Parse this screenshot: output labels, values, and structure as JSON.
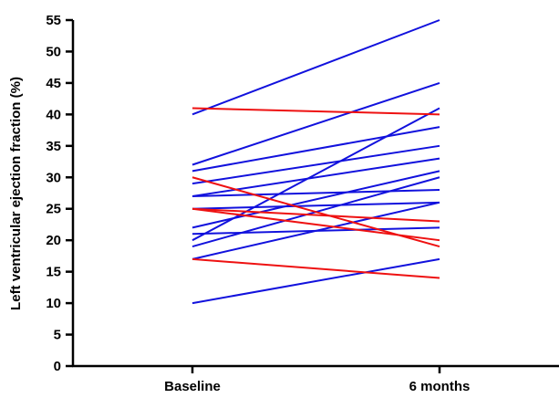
{
  "chart_data": {
    "type": "line",
    "title": "",
    "xlabel": "",
    "ylabel": "Left ventricular ejection fraction (%)",
    "categories": [
      "Baseline",
      "6 months"
    ],
    "ylim": [
      0,
      55
    ],
    "yticks": [
      0,
      5,
      10,
      15,
      20,
      25,
      30,
      35,
      40,
      45,
      50,
      55
    ],
    "grid": false,
    "legend": "none",
    "colors": {
      "blue": "#1111dd",
      "red": "#ee1111"
    },
    "series": [
      {
        "color": "blue",
        "values": [
          40,
          55
        ]
      },
      {
        "color": "blue",
        "values": [
          32,
          45
        ]
      },
      {
        "color": "blue",
        "values": [
          31,
          38
        ]
      },
      {
        "color": "blue",
        "values": [
          29,
          35
        ]
      },
      {
        "color": "blue",
        "values": [
          27,
          33
        ]
      },
      {
        "color": "blue",
        "values": [
          27,
          28
        ]
      },
      {
        "color": "blue",
        "values": [
          25,
          26
        ]
      },
      {
        "color": "blue",
        "values": [
          22,
          31
        ]
      },
      {
        "color": "blue",
        "values": [
          21,
          22
        ]
      },
      {
        "color": "blue",
        "values": [
          20,
          41
        ]
      },
      {
        "color": "blue",
        "values": [
          19,
          30
        ]
      },
      {
        "color": "blue",
        "values": [
          17,
          26
        ]
      },
      {
        "color": "blue",
        "values": [
          10,
          17
        ]
      },
      {
        "color": "red",
        "values": [
          41,
          40
        ]
      },
      {
        "color": "red",
        "values": [
          30,
          19
        ]
      },
      {
        "color": "red",
        "values": [
          25,
          23
        ]
      },
      {
        "color": "red",
        "values": [
          25,
          20
        ]
      },
      {
        "color": "red",
        "values": [
          17,
          14
        ]
      }
    ]
  }
}
